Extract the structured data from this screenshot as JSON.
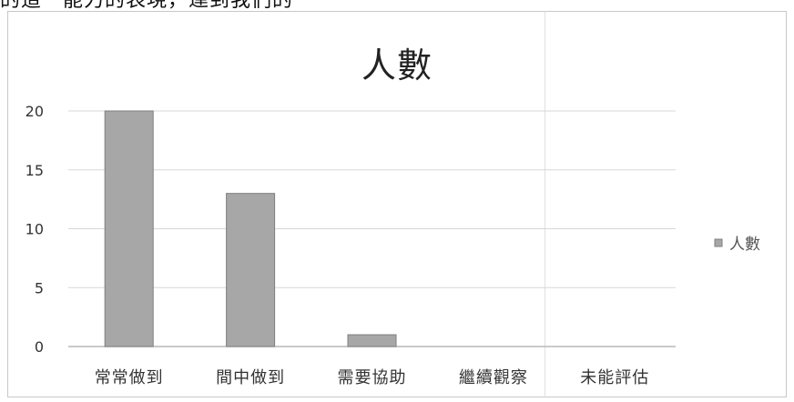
{
  "chart_data": {
    "type": "bar",
    "title": "人數",
    "categories": [
      "常常做到",
      "間中做到",
      "需要協助",
      "繼續觀察",
      "未能評估"
    ],
    "values": [
      20,
      13,
      1,
      0,
      0
    ],
    "ylim": [
      0,
      20
    ],
    "yticks": [
      0,
      5,
      10,
      15,
      20
    ],
    "legend": "right",
    "legend_label": "人數",
    "grid": true,
    "colors": {
      "bar": "#a7a7a7",
      "bar_stroke": "#7f7f7f",
      "grid": "#d7d7d7",
      "axis": "#b8b8b8"
    }
  },
  "header_fragment": "的這一能力的表現，達到我們的"
}
